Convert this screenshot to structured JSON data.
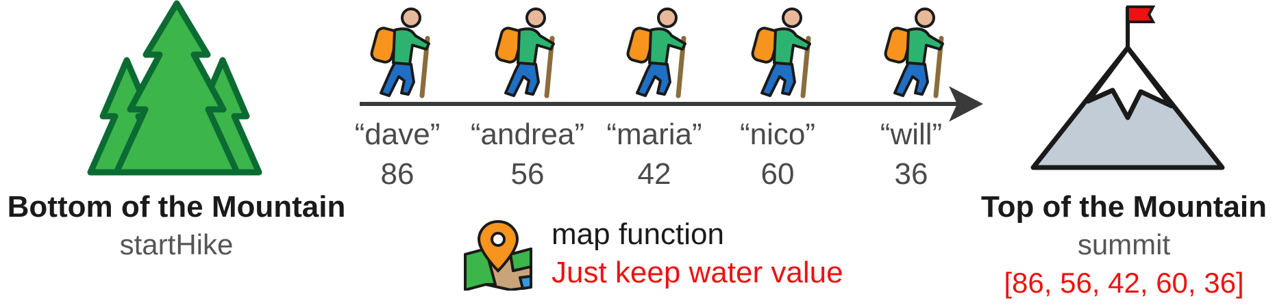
{
  "start": {
    "title": "Bottom of the Mountain",
    "subtitle": "startHike"
  },
  "end": {
    "title": "Top of the Mountain",
    "subtitle": "summit",
    "result": "[86, 56, 42, 60, 36]"
  },
  "hikers": [
    {
      "name": "“dave”",
      "water": "86"
    },
    {
      "name": "“andrea”",
      "water": "56"
    },
    {
      "name": "“maria”",
      "water": "42"
    },
    {
      "name": "“nico”",
      "water": "60"
    },
    {
      "name": "“will”",
      "water": "36"
    }
  ],
  "map": {
    "label": "map function",
    "description": "Just keep water value"
  },
  "colors": {
    "tree": "#3cb54a",
    "tree_outline": "#0b6b33",
    "shirt": "#2db36f",
    "pack": "#f7941d",
    "pants": "#1f6fc4",
    "skin": "#e8b89a",
    "arrow": "#3a3a3a",
    "mountain": "#c2ccd6",
    "flag": "#ee1111",
    "accent": "#ee1111"
  },
  "icons": {
    "start": "pine-trees-icon",
    "end": "mountain-summit-icon",
    "hiker": "hiker-icon",
    "map": "map-pin-icon"
  }
}
